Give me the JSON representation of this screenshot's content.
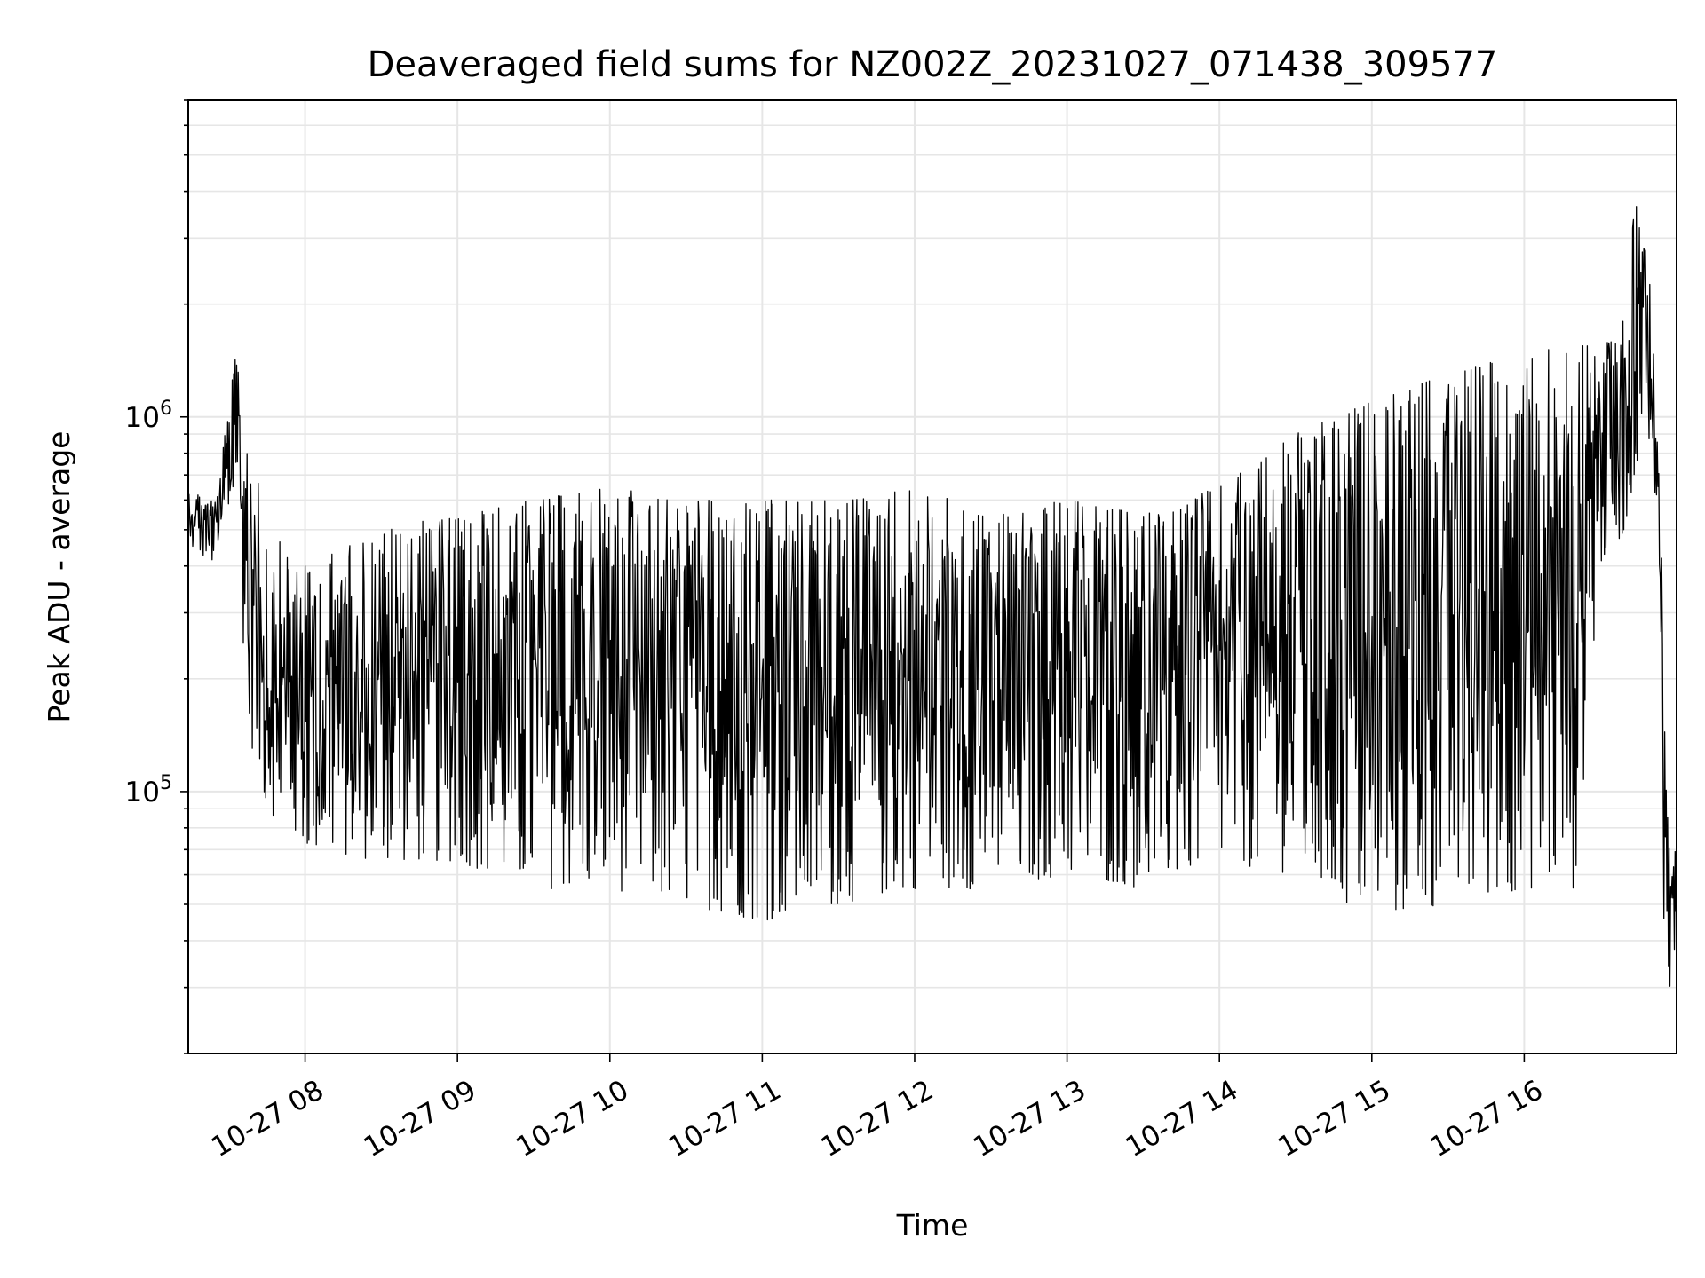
{
  "chart_data": {
    "type": "line",
    "title": "Deaveraged field sums for NZ002Z_20231027_071438_309577",
    "xlabel": "Time",
    "ylabel": "Peak ADU - average",
    "yscale": "log",
    "xlim": [
      "2023-10-27 07:14",
      "2023-10-27 17:00"
    ],
    "ylim": [
      20000,
      7000000
    ],
    "x_ticks": [
      {
        "t": "2023-10-27 08:00",
        "label": "10-27 08"
      },
      {
        "t": "2023-10-27 09:00",
        "label": "10-27 09"
      },
      {
        "t": "2023-10-27 10:00",
        "label": "10-27 10"
      },
      {
        "t": "2023-10-27 11:00",
        "label": "10-27 11"
      },
      {
        "t": "2023-10-27 12:00",
        "label": "10-27 12"
      },
      {
        "t": "2023-10-27 13:00",
        "label": "10-27 13"
      },
      {
        "t": "2023-10-27 14:00",
        "label": "10-27 14"
      },
      {
        "t": "2023-10-27 15:00",
        "label": "10-27 15"
      },
      {
        "t": "2023-10-27 16:00",
        "label": "10-27 16"
      }
    ],
    "y_ticks": [
      {
        "v": 100000,
        "label": "10",
        "exp": "5"
      },
      {
        "v": 1000000,
        "label": "10",
        "exp": "6"
      }
    ],
    "grid": true,
    "line_color": "#000000",
    "envelope": {
      "x": [
        "2023-10-27 07:14",
        "2023-10-27 07:25",
        "2023-10-27 07:30",
        "2023-10-27 07:33",
        "2023-10-27 07:37",
        "2023-10-27 07:45",
        "2023-10-27 08:00",
        "2023-10-27 08:30",
        "2023-10-27 09:00",
        "2023-10-27 09:30",
        "2023-10-27 10:00",
        "2023-10-27 10:30",
        "2023-10-27 11:00",
        "2023-10-27 11:30",
        "2023-10-27 12:00",
        "2023-10-27 12:30",
        "2023-10-27 13:00",
        "2023-10-27 13:30",
        "2023-10-27 14:00",
        "2023-10-27 14:30",
        "2023-10-27 15:00",
        "2023-10-27 15:30",
        "2023-10-27 16:00",
        "2023-10-27 16:20",
        "2023-10-27 16:30",
        "2023-10-27 16:40",
        "2023-10-27 16:45",
        "2023-10-27 16:48",
        "2023-10-27 16:52",
        "2023-10-27 16:55",
        "2023-10-27 16:58",
        "2023-10-27 17:00"
      ],
      "low": [
        450000,
        400000,
        500000,
        700000,
        150000,
        90000,
        70000,
        65000,
        65000,
        55000,
        55000,
        50000,
        45000,
        50000,
        55000,
        55000,
        60000,
        55000,
        65000,
        60000,
        45000,
        50000,
        55000,
        55000,
        400000,
        500000,
        800000,
        1200000,
        400000,
        40000,
        28000,
        40000
      ],
      "high": [
        650000,
        600000,
        1100000,
        1500000,
        1000000,
        500000,
        400000,
        500000,
        550000,
        600000,
        650000,
        600000,
        600000,
        600000,
        650000,
        550000,
        600000,
        550000,
        650000,
        900000,
        1100000,
        1300000,
        1500000,
        1600000,
        1500000,
        2000000,
        5000000,
        3000000,
        1500000,
        300000,
        70000,
        70000
      ]
    },
    "series": [
      {
        "x": [
          "2023-10-27 07:14",
          "2023-10-27 17:00"
        ],
        "n_samples": 2000
      }
    ]
  }
}
